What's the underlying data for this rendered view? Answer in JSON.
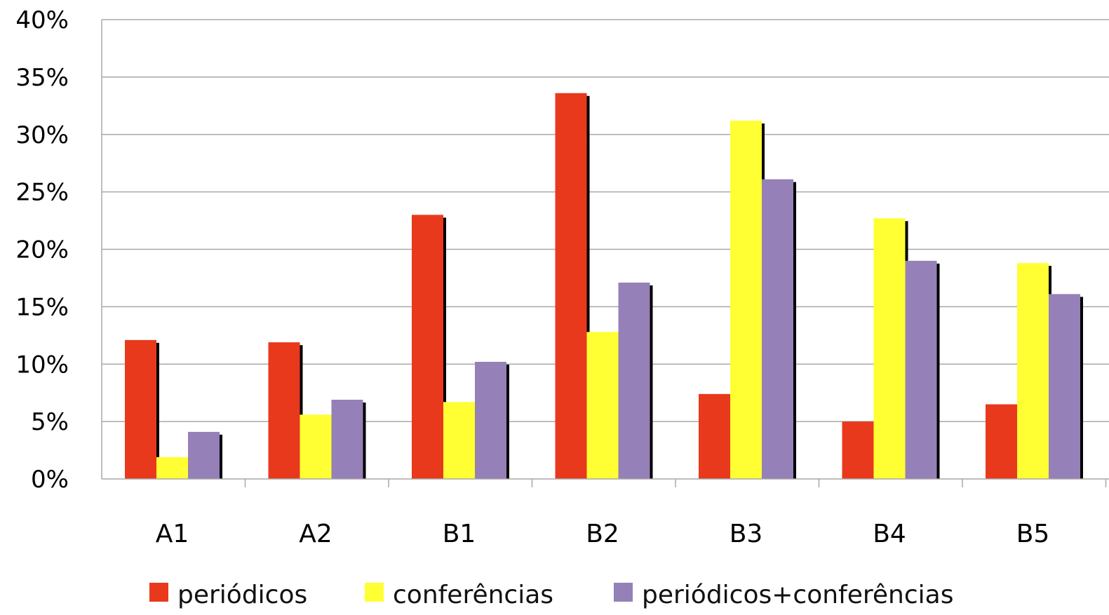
{
  "chart_data": {
    "type": "bar",
    "categories": [
      "A1",
      "A2",
      "B1",
      "B2",
      "B3",
      "B4",
      "B5"
    ],
    "series": [
      {
        "name": "periódicos",
        "color": "#e8391d",
        "values": [
          12.1,
          11.9,
          23.0,
          33.6,
          7.4,
          5.0,
          6.5
        ]
      },
      {
        "name": "conferências",
        "color": "#ffff33",
        "values": [
          1.9,
          5.6,
          6.7,
          12.8,
          31.2,
          22.7,
          18.8
        ]
      },
      {
        "name": "periódicos+conferências",
        "color": "#9580b8",
        "values": [
          4.1,
          6.9,
          10.2,
          17.1,
          26.1,
          19.0,
          16.1
        ]
      }
    ],
    "y_ticks": [
      "0%",
      "5%",
      "10%",
      "15%",
      "20%",
      "25%",
      "30%",
      "35%",
      "40%"
    ],
    "ylim": [
      0,
      40
    ],
    "grid": true,
    "legend_position": "bottom"
  }
}
